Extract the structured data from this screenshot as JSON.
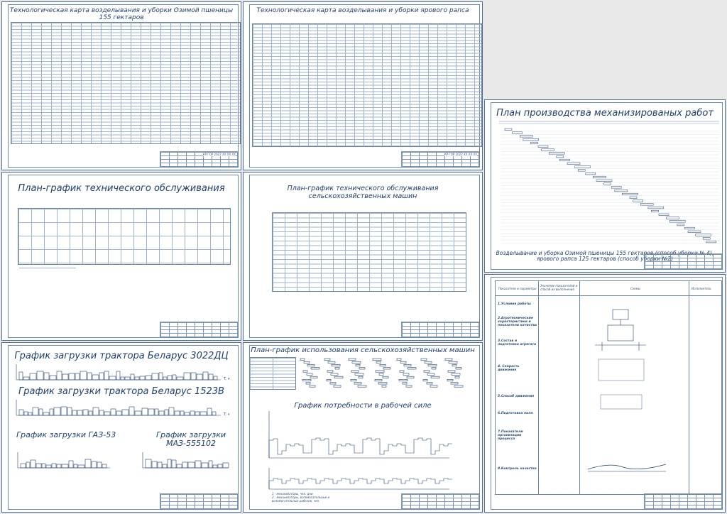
{
  "sheets": {
    "techcard_wheat": {
      "title": "Технологическая карта возделывания и уборки Озимой пшеницы",
      "subtitle": "155 гектаров",
      "stamp": "КР ГОР 2022 ХХ.ХХ.ХХ"
    },
    "techcard_rapeseed": {
      "title": "Технологическая карта возделывания и уборки ярового рапса",
      "stamp": "КР ГОР 2022 ХХ.ХХ.ХХ"
    },
    "mech_plan": {
      "title": "План производства механизированых работ",
      "caption": "Возделывание и уборка Озимой пшеницы 155 гектаров (способ уборки № 4), ярового рапса 125 гектаров (способ уборки №2)"
    },
    "maint_plan": {
      "title": "План-график технического обслуживания"
    },
    "maint_plan_machines": {
      "title": "План-график технического обслуживания",
      "subtitle": "сельскохозяйственных машин"
    },
    "tractor1": {
      "title": "График загрузки трактора Беларус 3022ДЦ",
      "axis": "T, ч"
    },
    "tractor2": {
      "title": "График загрузки трактора Беларус 1523В",
      "axis": "T, ч"
    },
    "truck1": {
      "title": "График загрузки ГАЗ-53"
    },
    "truck2": {
      "title": "График загрузки МАЗ-555102"
    },
    "machine_use": {
      "title": "План-график использования сельскохозяйственных машин"
    },
    "workforce": {
      "title": "График потребности в рабочей силе",
      "legend": [
        "1 - механизаторы, чел. дни",
        "2 - механизаторы, вспомогательные и",
        "вспомогательные рабочие, чел."
      ]
    },
    "quality_card": {
      "col1": "Показатели и параметры",
      "col2": "Значение показателей и способ их выполнения",
      "col3": "Схемы",
      "col4": "Исполнитель",
      "sections": [
        "1.Условия работы",
        "2.Агротехнические характеристики и показатели качества",
        "3.Состав и подготовка агрегата",
        "4. Скорость движения",
        "5.Способ движения",
        "6.Подготовка поля",
        "7.Показатели организации процесса",
        "8.Контроль качества"
      ]
    }
  }
}
